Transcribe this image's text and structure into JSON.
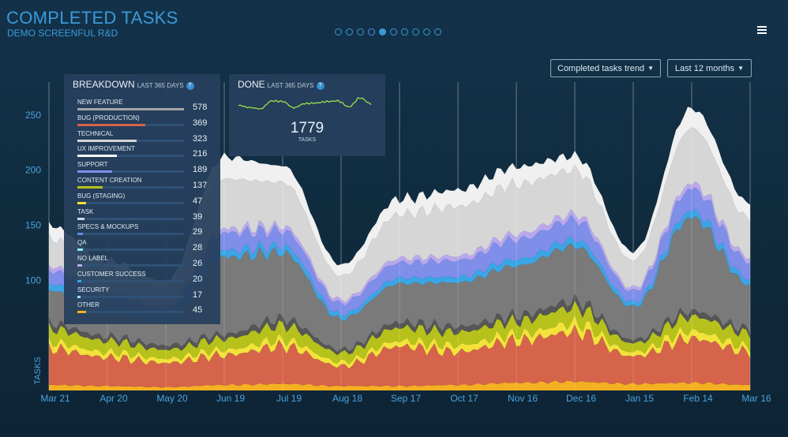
{
  "header": {
    "title": "COMPLETED TASKS",
    "subtitle": "DEMO SCREENFUL R&D",
    "page_count": 10,
    "active_page": 4
  },
  "controls": {
    "metric_dropdown": "Completed tasks trend",
    "range_dropdown": "Last 12 months"
  },
  "colors": {
    "accent": "#3a9ad9",
    "background": "#0f2a3c",
    "panel": "#26405c"
  },
  "breakdown": {
    "title": "BREAKDOWN",
    "subtitle": "LAST 365 DAYS",
    "items": [
      {
        "label": "NEW FEATURE",
        "value": "578",
        "color": "#a6a6a6"
      },
      {
        "label": "BUG (PRODUCTION)",
        "value": "369",
        "color": "#d5644a"
      },
      {
        "label": "TECHNICAL",
        "value": "323",
        "color": "#d6d6d6"
      },
      {
        "label": "UX IMPROVEMENT",
        "value": "216",
        "color": "#ffffff"
      },
      {
        "label": "SUPPORT",
        "value": "189",
        "color": "#7f8ee8"
      },
      {
        "label": "CONTENT CREATION",
        "value": "137",
        "color": "#b6c21b"
      },
      {
        "label": "BUG (STAGING)",
        "value": "47",
        "color": "#f2e23a"
      },
      {
        "label": "TASK",
        "value": "39",
        "color": "#cfd9e3"
      },
      {
        "label": "SPECS & MOCKUPS",
        "value": "29",
        "color": "#5b8de6"
      },
      {
        "label": "QA",
        "value": "28",
        "color": "#8ee6f5"
      },
      {
        "label": "NO LABEL",
        "value": "26",
        "color": "#b9a8ee"
      },
      {
        "label": "CUSTOMER SUCCESS",
        "value": "20",
        "color": "#3aa6e6"
      },
      {
        "label": "SECURITY",
        "value": "17",
        "color": "#9ad8f0"
      },
      {
        "label": "OTHER",
        "value": "45",
        "color": "#f5b021"
      }
    ]
  },
  "done": {
    "title": "DONE",
    "subtitle": "LAST 365 DAYS",
    "total": "1779",
    "unit": "TASKS"
  },
  "chart_data": {
    "type": "area",
    "title": "Completed tasks trend",
    "ylabel": "TASKS",
    "ylim": [
      0,
      280
    ],
    "yticks": [
      100,
      150,
      200,
      250
    ],
    "x": [
      "Mar 21",
      "Apr 20",
      "May 20",
      "Jun 19",
      "Jul 19",
      "Aug 18",
      "Sep 17",
      "Oct 17",
      "Nov 16",
      "Dec 16",
      "Jan 15",
      "Feb 14",
      "Mar 16"
    ],
    "stacked": true,
    "series": [
      {
        "name": "OTHER",
        "color": "#f5b021",
        "values": [
          5,
          4,
          3,
          5,
          6,
          4,
          4,
          5,
          7,
          8,
          6,
          7,
          5
        ]
      },
      {
        "name": "BUG (PRODUCTION)",
        "color": "#d5644a",
        "values": [
          33,
          26,
          22,
          27,
          34,
          18,
          36,
          30,
          38,
          45,
          25,
          40,
          30
        ]
      },
      {
        "name": "BUG (STAGING)",
        "color": "#f2e23a",
        "values": [
          6,
          5,
          4,
          5,
          6,
          4,
          5,
          6,
          6,
          8,
          4,
          7,
          5
        ]
      },
      {
        "name": "CONTENT CREATION",
        "color": "#b6c21b",
        "values": [
          12,
          10,
          8,
          10,
          13,
          8,
          12,
          12,
          12,
          14,
          8,
          13,
          12
        ]
      },
      {
        "name": "SECURITY",
        "color": "#565656",
        "values": [
          5,
          4,
          4,
          4,
          6,
          3,
          5,
          5,
          5,
          6,
          3,
          5,
          4
        ]
      },
      {
        "name": "NEW FEATURE",
        "color": "#7a7a7a",
        "values": [
          30,
          22,
          20,
          70,
          60,
          28,
          35,
          40,
          45,
          50,
          30,
          85,
          40
        ]
      },
      {
        "name": "CUSTOMER SUCCESS",
        "color": "#3aa6e6",
        "values": [
          6,
          5,
          5,
          6,
          6,
          4,
          5,
          5,
          6,
          6,
          4,
          6,
          5
        ]
      },
      {
        "name": "SUPPORT",
        "color": "#7f8ee8",
        "values": [
          12,
          10,
          9,
          16,
          14,
          10,
          14,
          15,
          18,
          18,
          10,
          20,
          16
        ]
      },
      {
        "name": "NO LABEL",
        "color": "#b9a8ee",
        "values": [
          4,
          4,
          3,
          4,
          4,
          3,
          4,
          4,
          5,
          5,
          3,
          5,
          4
        ]
      },
      {
        "name": "TECHNICAL",
        "color": "#d6d6d6",
        "values": [
          25,
          20,
          15,
          45,
          40,
          22,
          40,
          45,
          45,
          40,
          25,
          50,
          35
        ]
      },
      {
        "name": "UX IMPROVEMENT",
        "color": "#f0f0f0",
        "values": [
          12,
          8,
          6,
          20,
          15,
          10,
          14,
          15,
          16,
          13,
          8,
          18,
          14
        ]
      }
    ]
  }
}
